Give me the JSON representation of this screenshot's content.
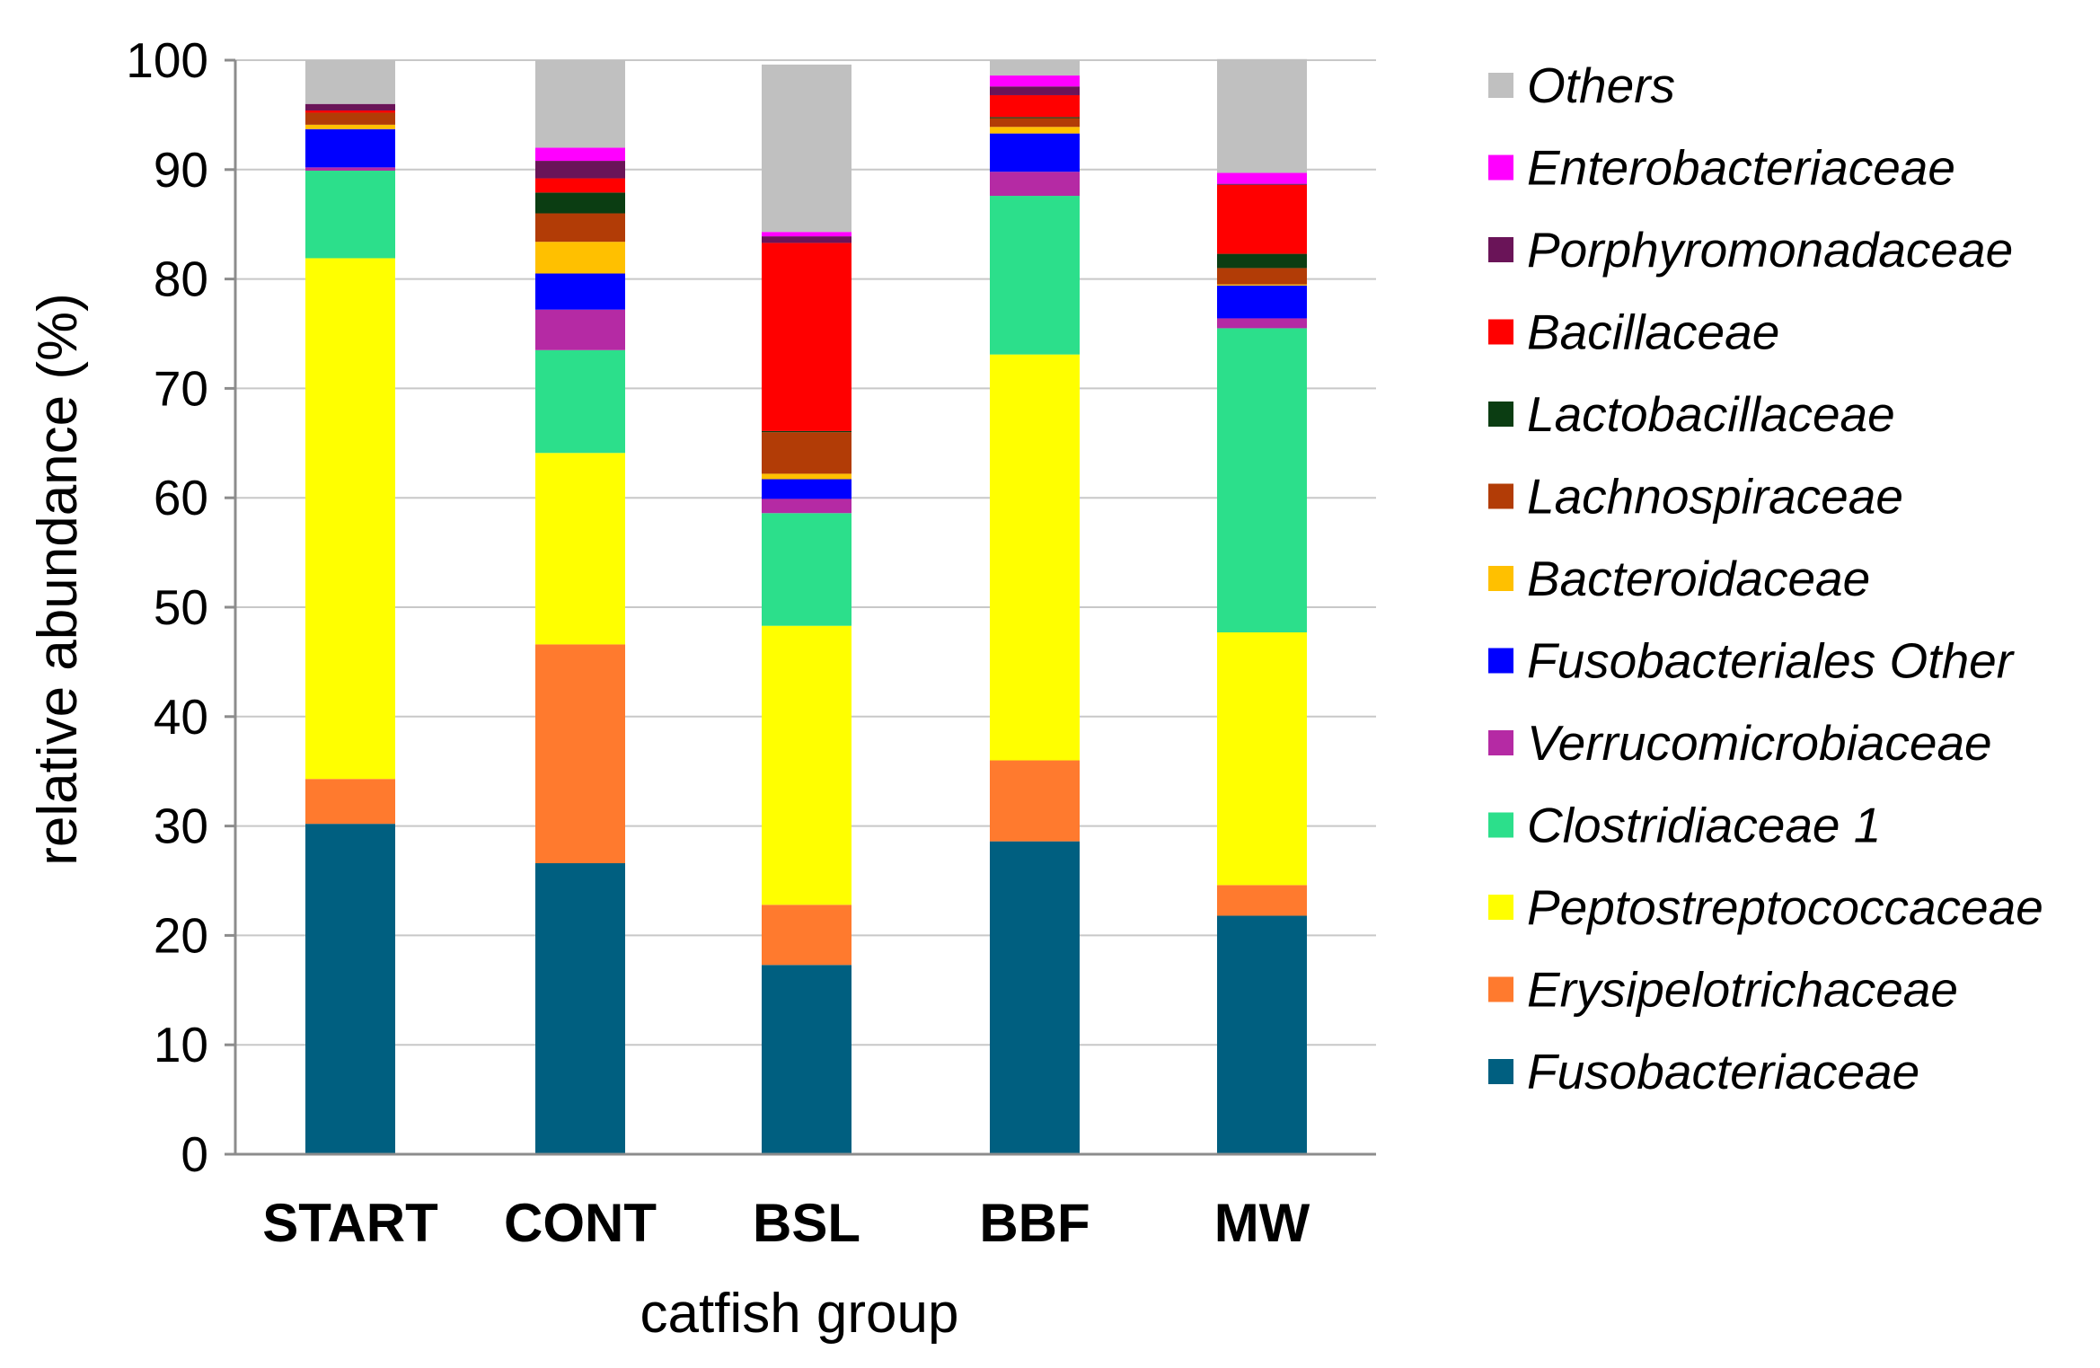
{
  "chart_data": {
    "type": "bar",
    "stacked": true,
    "title": "",
    "xlabel": "catfish group",
    "ylabel": "relative abundance (%)",
    "ylim": [
      0,
      100
    ],
    "yticks": [
      0,
      10,
      20,
      30,
      40,
      50,
      60,
      70,
      80,
      90,
      100
    ],
    "grid": true,
    "legend_position": "right",
    "categories": [
      "START",
      "CONT",
      "BSL",
      "BBF",
      "MW"
    ],
    "series": [
      {
        "name": "Fusobacteriaceae",
        "color": "#005F80",
        "values": [
          30.2,
          26.6,
          17.3,
          28.6,
          21.8
        ]
      },
      {
        "name": "Erysipelotrichaceae",
        "color": "#FF7A2E",
        "values": [
          4.1,
          20.0,
          5.5,
          7.4,
          2.8
        ]
      },
      {
        "name": "Peptostreptococcaceae",
        "color": "#FFFF00",
        "values": [
          47.6,
          17.5,
          25.5,
          37.1,
          23.1
        ]
      },
      {
        "name": "Clostridiaceae 1",
        "color": "#2CDF8B",
        "values": [
          8.0,
          9.4,
          10.3,
          14.5,
          27.8
        ]
      },
      {
        "name": "Verrucomicrobiaceae",
        "color": "#B52AA4",
        "values": [
          0.3,
          3.7,
          1.3,
          2.2,
          0.9
        ]
      },
      {
        "name": "Fusobacteriales Other",
        "color": "#0000FF",
        "values": [
          3.5,
          3.3,
          1.8,
          3.5,
          3.0
        ]
      },
      {
        "name": "Bacteroidaceae",
        "color": "#FFC000",
        "values": [
          0.4,
          2.9,
          0.5,
          0.6,
          0.1
        ]
      },
      {
        "name": "Lachnospiraceae",
        "color": "#B23C06",
        "values": [
          1.1,
          2.6,
          3.8,
          0.8,
          1.5
        ]
      },
      {
        "name": "Lactobacillaceae",
        "color": "#0B3D12",
        "values": [
          0.0,
          1.9,
          0.1,
          0.1,
          1.3
        ]
      },
      {
        "name": "Bacillaceae",
        "color": "#FF0000",
        "values": [
          0.2,
          1.3,
          17.2,
          2.0,
          6.3
        ]
      },
      {
        "name": "Porphyromonadaceae",
        "color": "#6A1458",
        "values": [
          0.6,
          1.6,
          0.6,
          0.8,
          0.1
        ]
      },
      {
        "name": "Enterobacteriaceae",
        "color": "#FF00FF",
        "values": [
          0.0,
          1.2,
          0.4,
          1.0,
          1.0
        ]
      },
      {
        "name": "Others",
        "color": "#C0C0C0",
        "values": [
          4.0,
          8.0,
          15.3,
          1.4,
          10.4
        ]
      }
    ]
  }
}
